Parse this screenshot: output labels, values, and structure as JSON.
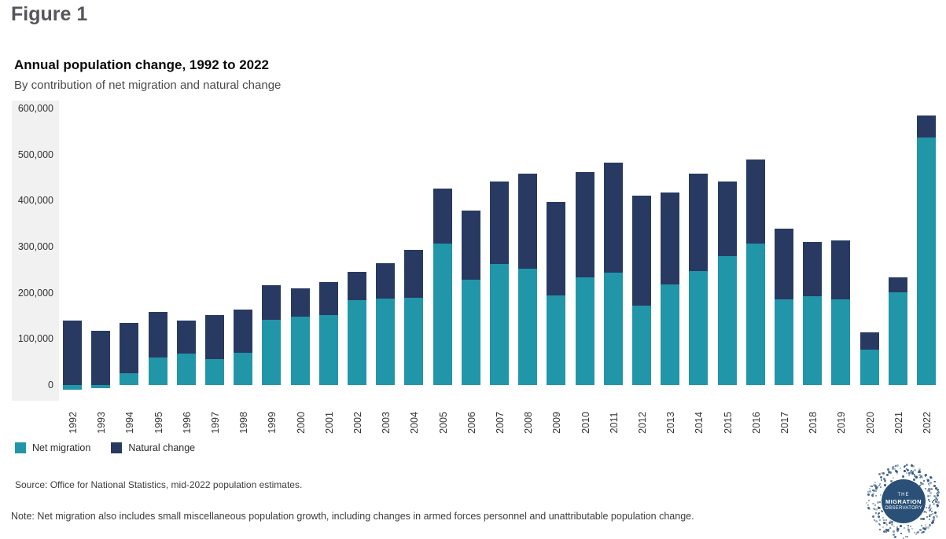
{
  "figure_label": "Figure 1",
  "chart": {
    "title": "Annual population change, 1992 to 2022",
    "subtitle": "By contribution of net migration and natural change"
  },
  "legend": [
    {
      "label": "Net migration",
      "color": "#2196a8"
    },
    {
      "label": "Natural change",
      "color": "#283a62"
    }
  ],
  "source": "Source: Office for National Statistics, mid-2022 population estimates.",
  "note": "Note: Net migration also includes small miscellaneous population growth, including changes in armed forces personnel and unattributable population change.",
  "logo": {
    "lines": [
      "THE",
      "MIGRATION",
      "OBSERVATORY"
    ],
    "color": "#2a5078"
  },
  "chart_data": {
    "type": "bar",
    "stacked": true,
    "title": "Annual population change, 1992 to 2022",
    "subtitle": "By contribution of net migration and natural change",
    "categories": [
      "1992",
      "1993",
      "1994",
      "1995",
      "1996",
      "1997",
      "1998",
      "1999",
      "2000",
      "2001",
      "2002",
      "2003",
      "2004",
      "2005",
      "2006",
      "2007",
      "2008",
      "2009",
      "2010",
      "2011",
      "2012",
      "2013",
      "2014",
      "2015",
      "2016",
      "2017",
      "2018",
      "2019",
      "2020",
      "2021",
      "2022"
    ],
    "series": [
      {
        "name": "Net migration",
        "color": "#2196a8",
        "values": [
          -10000,
          -7000,
          26000,
          60000,
          68000,
          56000,
          70000,
          142000,
          149000,
          152000,
          184000,
          187000,
          190000,
          307000,
          228000,
          263000,
          252000,
          194000,
          234000,
          243000,
          173000,
          218000,
          247000,
          280000,
          307000,
          186000,
          192000,
          185000,
          77000,
          201000,
          537000
        ]
      },
      {
        "name": "Natural change",
        "color": "#283a62",
        "values": [
          140000,
          118000,
          108000,
          98000,
          72000,
          96000,
          93000,
          74000,
          60000,
          72000,
          62000,
          77000,
          103000,
          119000,
          150000,
          178000,
          206000,
          204000,
          228000,
          240000,
          238000,
          199000,
          212000,
          162000,
          182000,
          153000,
          119000,
          128000,
          37000,
          33000,
          47000
        ]
      }
    ],
    "ylim": [
      0,
      600000
    ],
    "yticks": [
      {
        "value": 0,
        "label": "0"
      },
      {
        "value": 100000,
        "label": "100,000"
      },
      {
        "value": 200000,
        "label": "200,000"
      },
      {
        "value": 300000,
        "label": "300,000"
      },
      {
        "value": 400000,
        "label": "400,000"
      },
      {
        "value": 500000,
        "label": "500,000"
      },
      {
        "value": 600000,
        "label": "600,000"
      }
    ],
    "grid": false,
    "legend_position": "bottom-left"
  }
}
